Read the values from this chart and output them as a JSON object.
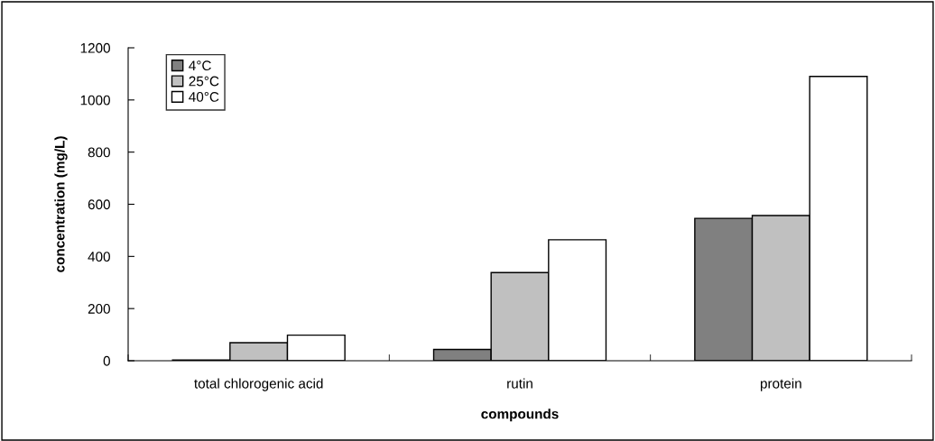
{
  "chart_data": {
    "type": "bar",
    "xlabel": "compounds",
    "ylabel": "concentration (mg/L)",
    "categories": [
      "total chlorogenic acid",
      "rutin",
      "protein"
    ],
    "series": [
      {
        "name": "4°C",
        "color": "#808080",
        "values": [
          3,
          43,
          546
        ]
      },
      {
        "name": "25°C",
        "color": "#c0c0c0",
        "values": [
          69,
          338,
          557
        ]
      },
      {
        "name": "40°C",
        "color": "#ffffff",
        "values": [
          98,
          464,
          1090
        ]
      }
    ],
    "ylim": [
      0,
      1200
    ],
    "yticks": [
      0,
      200,
      400,
      600,
      800,
      1000,
      1200
    ],
    "grid": false,
    "legend": "top left"
  }
}
